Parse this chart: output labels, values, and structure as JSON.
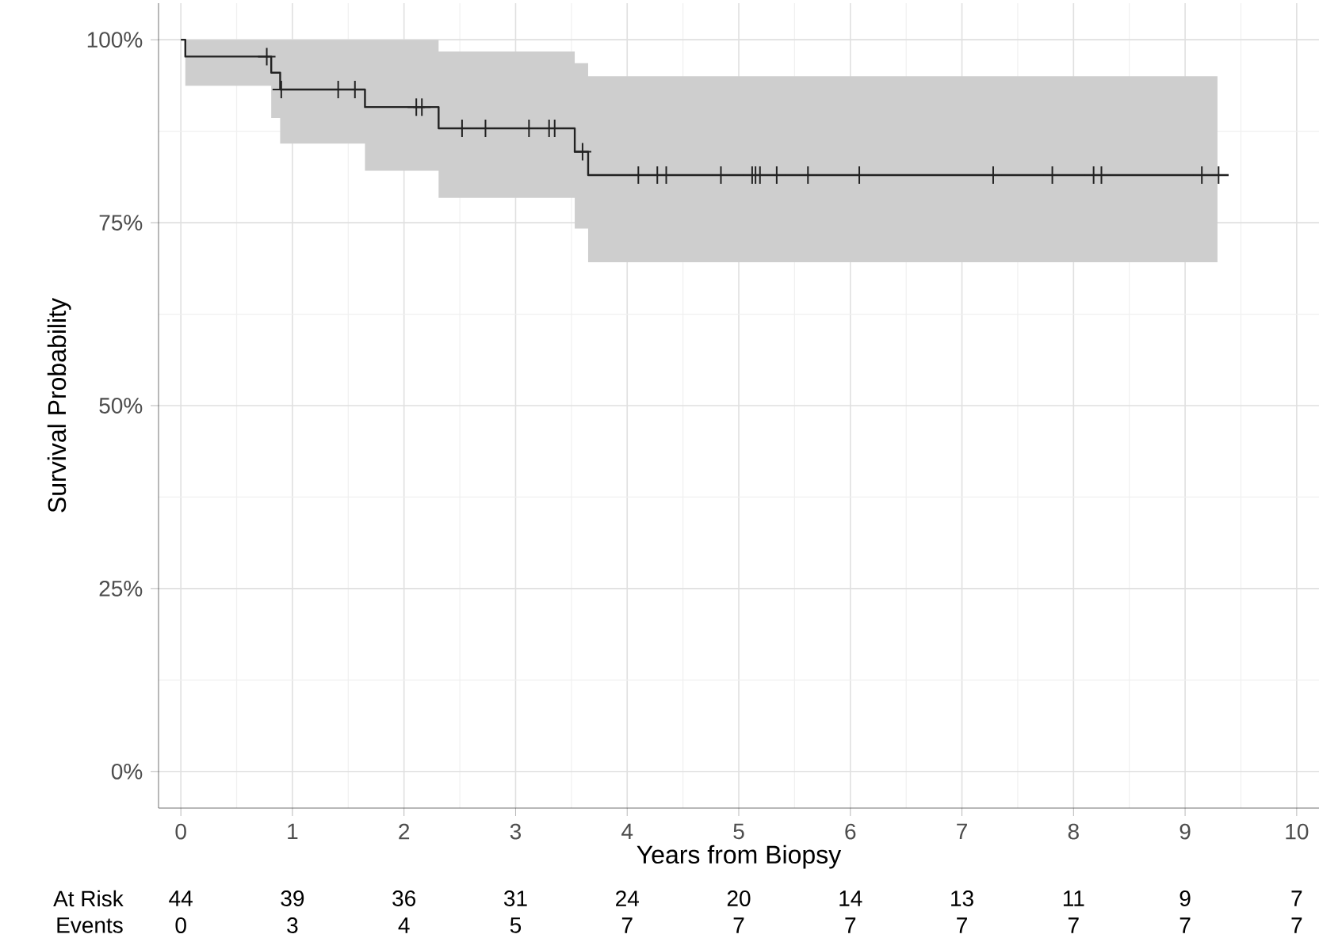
{
  "chart_data": {
    "type": "step",
    "xlabel": "Years from Biopsy",
    "ylabel": "Survival Probability",
    "xlim": [
      -0.2,
      10.2
    ],
    "ylim": [
      -5,
      105
    ],
    "xticks": [
      0,
      1,
      2,
      3,
      4,
      5,
      6,
      7,
      8,
      9,
      10
    ],
    "yticks": [
      {
        "value": 0,
        "label": "0%"
      },
      {
        "value": 25,
        "label": "25%"
      },
      {
        "value": 50,
        "label": "50%"
      },
      {
        "value": 75,
        "label": "75%"
      },
      {
        "value": 100,
        "label": "100%"
      }
    ],
    "grid": true,
    "series": [
      {
        "color": "#222222",
        "x": [
          0,
          0.04,
          0.81,
          0.89,
          1.65,
          2.31,
          3.53,
          3.65,
          9.29,
          9.39
        ],
        "values": [
          100,
          97.7,
          95.5,
          93.2,
          90.8,
          87.9,
          84.7,
          81.5,
          81.5,
          81.5
        ],
        "lower": [
          100,
          93.7,
          89.3,
          85.8,
          82.1,
          78.4,
          74.2,
          69.6,
          69.6,
          null
        ],
        "upper": [
          100,
          100,
          100,
          100,
          100,
          98.4,
          96.8,
          95.0,
          95.0,
          null
        ]
      },
      {
        "type": "scatter",
        "color": "#222222",
        "marker": "cross",
        "x": [
          0.77,
          0.9,
          1.41,
          1.56,
          2.11,
          2.16,
          2.52,
          2.73,
          3.12,
          3.3,
          3.35,
          3.6,
          4.1,
          4.27,
          4.35,
          4.84,
          5.12,
          5.15,
          5.19,
          5.34,
          5.62,
          6.08,
          7.28,
          7.81,
          8.18,
          8.25,
          9.15,
          9.3
        ],
        "values": [
          97.7,
          93.2,
          93.2,
          93.2,
          90.8,
          90.8,
          87.9,
          87.9,
          87.9,
          87.9,
          87.9,
          84.7,
          81.5,
          81.5,
          81.5,
          81.5,
          81.5,
          81.5,
          81.5,
          81.5,
          81.5,
          81.5,
          81.5,
          81.5,
          81.5,
          81.5,
          81.5,
          81.5
        ]
      }
    ],
    "annotations": [
      "At Risk",
      "44",
      "39",
      "36",
      "31",
      "24",
      "20",
      "14",
      "13",
      "11",
      "9",
      "7",
      "Events",
      "0",
      "3",
      "4",
      "5",
      "7",
      "7",
      "7",
      "7",
      "7",
      "7",
      "7"
    ]
  }
}
